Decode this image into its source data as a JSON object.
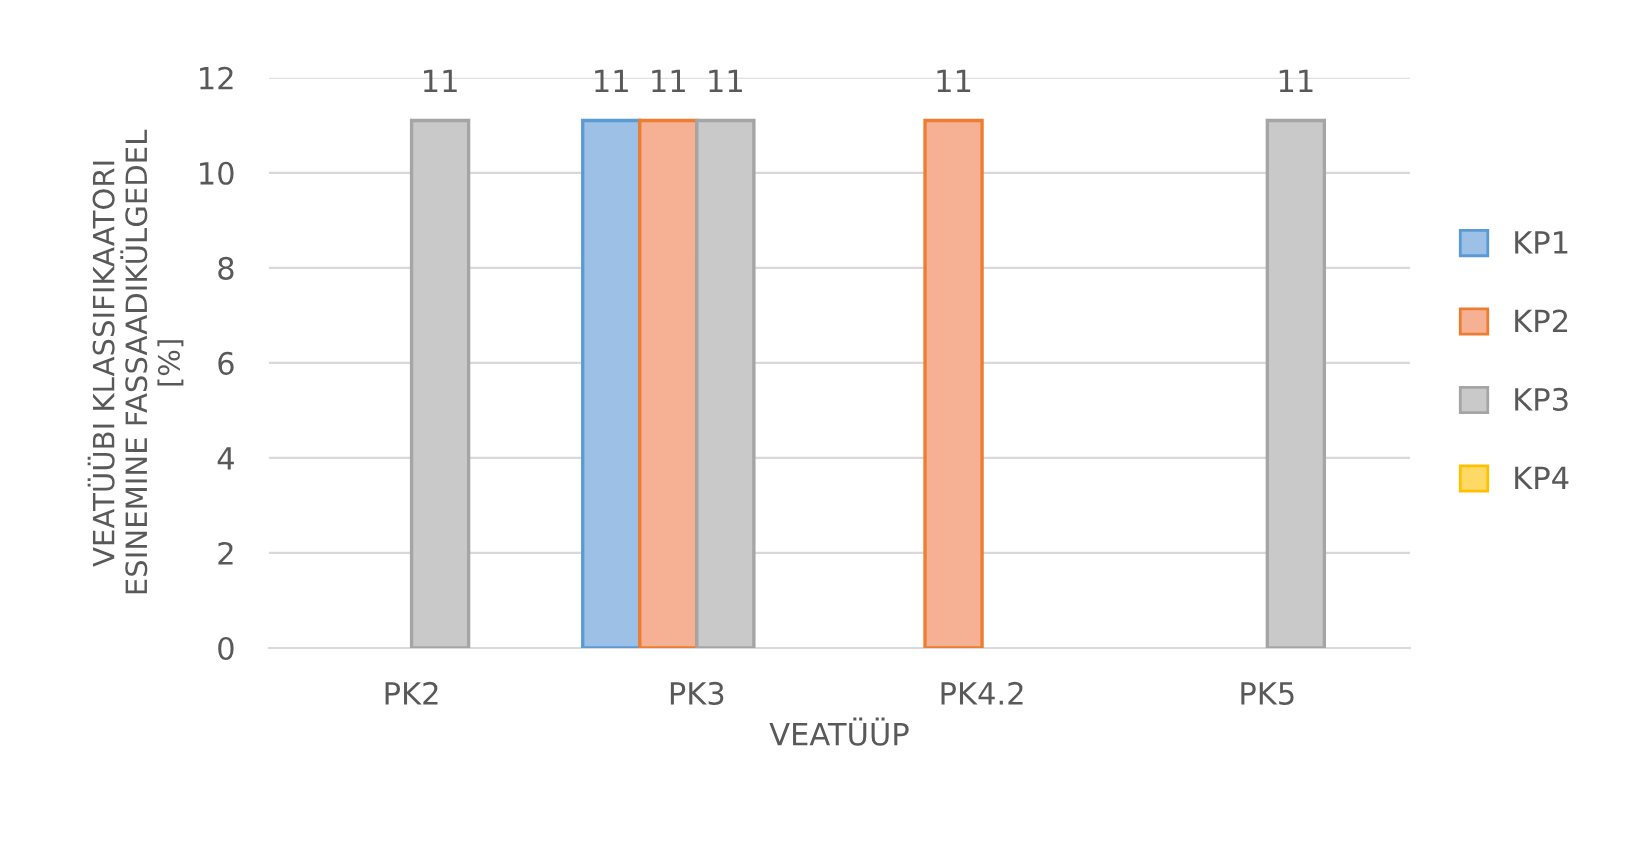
{
  "chart_data": {
    "type": "bar",
    "xlabel": "VEATÜÜP",
    "ylabel": "VEATÜÜBI KLASSIFIKAATORI\nESINEMINE FASSAADIKÜLGEDEL\n[%]",
    "categories": [
      "PK2",
      "PK3",
      "PK4.2",
      "PK5"
    ],
    "series": [
      {
        "name": "KP1",
        "color": "#9dc0e6",
        "values": [
          0,
          11.1,
          0,
          0
        ],
        "value_labels": [
          null,
          "11",
          null,
          null
        ]
      },
      {
        "name": "KP2",
        "color": "#f6b195",
        "values": [
          0,
          11.1,
          11.1,
          0
        ],
        "value_labels": [
          null,
          "11",
          "11",
          null
        ]
      },
      {
        "name": "KP3",
        "color": "#c9c9c9",
        "values": [
          11.1,
          11.1,
          0,
          11.1
        ],
        "value_labels": [
          "11",
          "11",
          null,
          "11"
        ]
      },
      {
        "name": "KP4",
        "color": "#ffd966",
        "values": [
          0,
          0,
          0,
          0
        ],
        "value_labels": [
          null,
          null,
          null,
          null
        ]
      }
    ],
    "ylim": [
      0,
      12
    ],
    "yticks": [
      0,
      2,
      4,
      6,
      8,
      10,
      12
    ],
    "grid": "y",
    "legend": "right"
  }
}
